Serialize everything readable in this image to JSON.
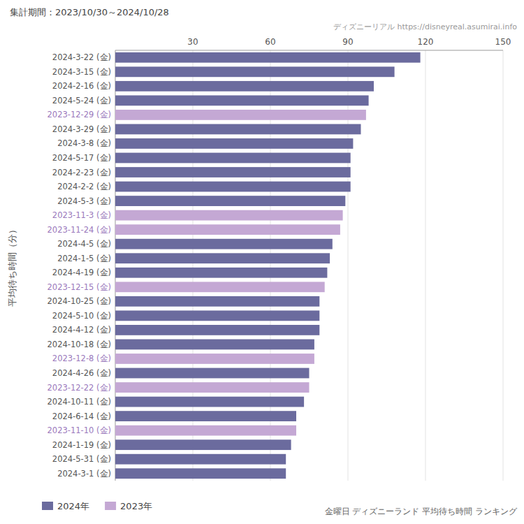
{
  "chart_data": {
    "type": "bar",
    "orientation": "horizontal",
    "stacked": true,
    "title": "集計期間：2023/10/30～2024/10/28",
    "ylabel": "平均待ち時間（分）",
    "annotations": [
      "ディズニーリアル  https://disneyreal.asumirai.info",
      "金曜日 ディズニーランド 平均待ち時間 ランキング"
    ],
    "categories": [
      "2024-3-22 (金)",
      "2024-3-15 (金)",
      "2024-2-16 (金)",
      "2024-5-24 (金)",
      "2023-12-29 (金)",
      "2024-3-29 (金)",
      "2024-3-8 (金)",
      "2024-5-17 (金)",
      "2024-2-23 (金)",
      "2024-2-2 (金)",
      "2024-5-3 (金)",
      "2023-11-3 (金)",
      "2023-11-24 (金)",
      "2024-4-5 (金)",
      "2024-1-5 (金)",
      "2024-4-19 (金)",
      "2023-12-15 (金)",
      "2024-10-25 (金)",
      "2024-5-10 (金)",
      "2024-4-12 (金)",
      "2024-10-18 (金)",
      "2023-12-8 (金)",
      "2024-4-26 (金)",
      "2023-12-22 (金)",
      "2024-10-11 (金)",
      "2024-6-14 (金)",
      "2023-11-10 (金)",
      "2024-1-19 (金)",
      "2024-5-31 (金)",
      "2024-3-1 (金)"
    ],
    "series": [
      {
        "name": "2024年",
        "color": "#6b6b9e",
        "values": [
          118,
          108,
          100,
          98,
          null,
          95,
          92,
          91,
          91,
          91,
          89,
          null,
          null,
          84,
          83,
          82,
          null,
          79,
          79,
          79,
          77,
          null,
          75,
          null,
          73,
          70,
          null,
          68,
          66,
          66
        ]
      },
      {
        "name": "2023年",
        "color": "#c4a8d4",
        "values": [
          null,
          null,
          null,
          null,
          97,
          null,
          null,
          null,
          null,
          null,
          null,
          88,
          87,
          null,
          null,
          null,
          81,
          null,
          null,
          null,
          null,
          77,
          null,
          75,
          null,
          null,
          70,
          null,
          null,
          null
        ]
      }
    ],
    "xlim": [
      0,
      150
    ],
    "xticks": [
      30,
      60,
      90,
      120,
      150
    ],
    "grid": true,
    "legend": "bottom-left"
  }
}
